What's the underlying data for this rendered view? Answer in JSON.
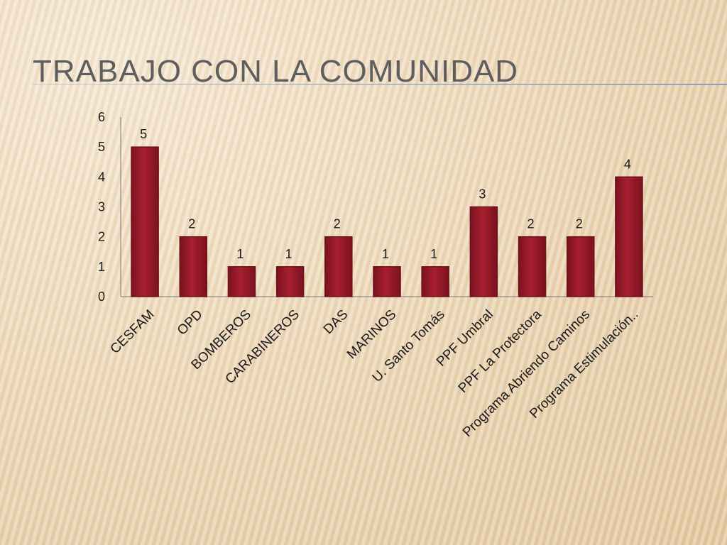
{
  "slide": {
    "title": "TRABAJO CON LA COMUNIDAD"
  },
  "chart_data": {
    "type": "bar",
    "title": "",
    "xlabel": "",
    "ylabel": "",
    "ylim": [
      0,
      6
    ],
    "yticks": [
      0,
      1,
      2,
      3,
      4,
      5,
      6
    ],
    "grid": false,
    "legend": "none",
    "categories": [
      "CESFAM",
      "OPD",
      "BOMBEROS",
      "CARABINEROS",
      "DAS",
      "MARINOS",
      "U. Santo Tomás",
      "PPF Umbral",
      "PPF La Protectora",
      "Programa Abriendo Caminos",
      "Programa Estimulación.."
    ],
    "series": [
      {
        "name": "",
        "values": [
          5,
          2,
          1,
          1,
          2,
          1,
          1,
          3,
          2,
          2,
          4
        ]
      }
    ],
    "data_labels": true,
    "colors": {
      "bar": "#9e1b2a",
      "bar_dark": "#6e0f1a",
      "axis": "#7a7a7a",
      "text": "#1a1a1a"
    }
  }
}
